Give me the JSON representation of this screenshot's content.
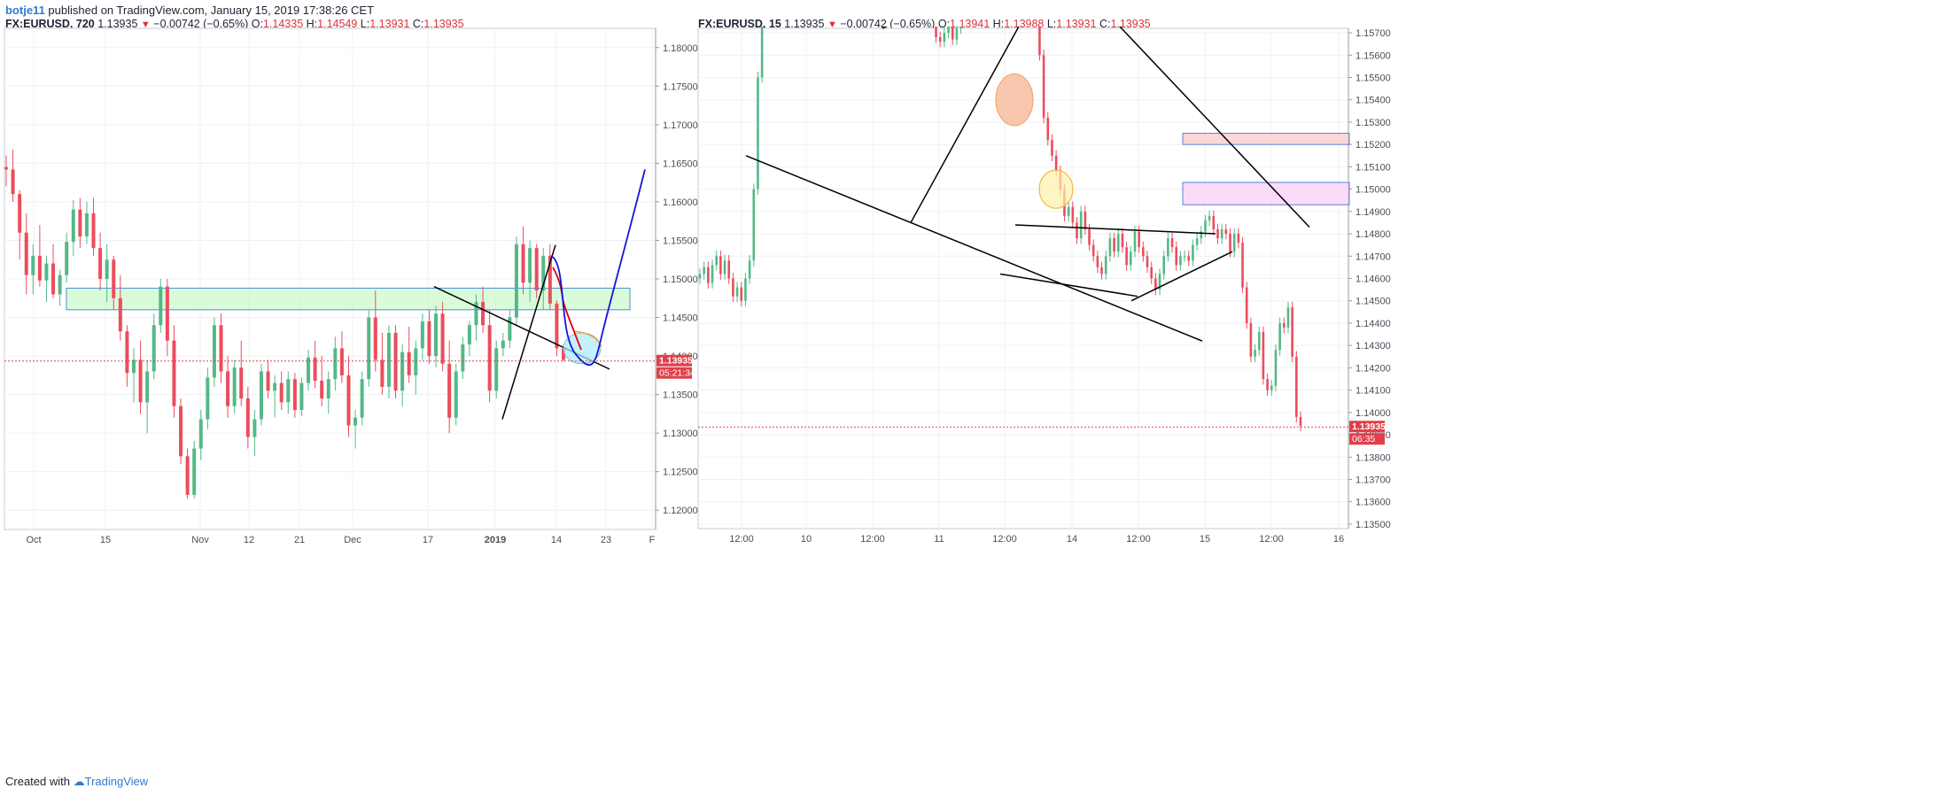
{
  "header": {
    "author": "botje11",
    "text": "published on TradingView.com, January 15, 2019 17:38:26 CET"
  },
  "footer": {
    "created": "Created with",
    "brand": "TradingView"
  },
  "chart_data": [
    {
      "type": "candlestick",
      "symbol": "FX:EURUSD",
      "interval": "720",
      "last": "1.13935",
      "change": "−0.00742 (−0.65%)",
      "open": "1.14335",
      "high": "1.14549",
      "low": "1.13931",
      "close": "1.13935",
      "price_label": "1.13935",
      "countdown": "05:21:34",
      "ylim": [
        1.1175,
        1.1825
      ],
      "y_ticks": [
        "1.18000",
        "1.17500",
        "1.17000",
        "1.16500",
        "1.16000",
        "1.15500",
        "1.15000",
        "1.14500",
        "1.14000",
        "1.13500",
        "1.13000",
        "1.12500",
        "1.12000"
      ],
      "x_ticks": [
        "Oct",
        "15",
        "Nov",
        "12",
        "21",
        "Dec",
        "17",
        "2019",
        "14",
        "23",
        "F"
      ],
      "candles": [
        [
          1.1645,
          1.166,
          1.162,
          1.1642
        ],
        [
          1.1642,
          1.1668,
          1.16,
          1.161
        ],
        [
          1.161,
          1.1615,
          1.1525,
          1.156
        ],
        [
          1.156,
          1.1585,
          1.148,
          1.1505
        ],
        [
          1.1505,
          1.1545,
          1.148,
          1.153
        ],
        [
          1.153,
          1.157,
          1.149,
          1.1498
        ],
        [
          1.1498,
          1.153,
          1.147,
          1.152
        ],
        [
          1.152,
          1.1545,
          1.1475,
          1.148
        ],
        [
          1.148,
          1.1512,
          1.1465,
          1.1505
        ],
        [
          1.1505,
          1.156,
          1.1495,
          1.1548
        ],
        [
          1.1548,
          1.1602,
          1.153,
          1.159
        ],
        [
          1.159,
          1.1605,
          1.154,
          1.1555
        ],
        [
          1.1555,
          1.16,
          1.1545,
          1.1585
        ],
        [
          1.1585,
          1.1605,
          1.153,
          1.154
        ],
        [
          1.154,
          1.156,
          1.1485,
          1.15
        ],
        [
          1.15,
          1.1545,
          1.147,
          1.1525
        ],
        [
          1.1525,
          1.153,
          1.146,
          1.1475
        ],
        [
          1.1475,
          1.1505,
          1.142,
          1.1432
        ],
        [
          1.1432,
          1.144,
          1.136,
          1.1378
        ],
        [
          1.1378,
          1.141,
          1.134,
          1.1395
        ],
        [
          1.1395,
          1.142,
          1.1325,
          1.134
        ],
        [
          1.134,
          1.1395,
          1.13,
          1.138
        ],
        [
          1.138,
          1.1455,
          1.137,
          1.144
        ],
        [
          1.144,
          1.15,
          1.143,
          1.149
        ],
        [
          1.149,
          1.15,
          1.14,
          1.142
        ],
        [
          1.142,
          1.144,
          1.132,
          1.1335
        ],
        [
          1.1335,
          1.1345,
          1.126,
          1.127
        ],
        [
          1.127,
          1.128,
          1.1215,
          1.122
        ],
        [
          1.122,
          1.129,
          1.1215,
          1.128
        ],
        [
          1.128,
          1.133,
          1.1265,
          1.1318
        ],
        [
          1.1318,
          1.1385,
          1.1305,
          1.1372
        ],
        [
          1.1372,
          1.145,
          1.136,
          1.144
        ],
        [
          1.144,
          1.1455,
          1.1365,
          1.138
        ],
        [
          1.138,
          1.14,
          1.132,
          1.1335
        ],
        [
          1.1335,
          1.1395,
          1.1325,
          1.1385
        ],
        [
          1.1385,
          1.142,
          1.1335,
          1.1345
        ],
        [
          1.1345,
          1.136,
          1.128,
          1.1295
        ],
        [
          1.1295,
          1.133,
          1.127,
          1.1318
        ],
        [
          1.1318,
          1.139,
          1.131,
          1.138
        ],
        [
          1.138,
          1.1395,
          1.1345,
          1.1355
        ],
        [
          1.1355,
          1.1375,
          1.132,
          1.1365
        ],
        [
          1.1365,
          1.138,
          1.133,
          1.134
        ],
        [
          1.134,
          1.138,
          1.1325,
          1.137
        ],
        [
          1.137,
          1.1378,
          1.132,
          1.133
        ],
        [
          1.133,
          1.1372,
          1.1322,
          1.1365
        ],
        [
          1.1365,
          1.1408,
          1.1355,
          1.1398
        ],
        [
          1.1398,
          1.142,
          1.1358,
          1.1368
        ],
        [
          1.1368,
          1.14,
          1.1335,
          1.1345
        ],
        [
          1.1345,
          1.138,
          1.1325,
          1.137
        ],
        [
          1.137,
          1.1425,
          1.1355,
          1.141
        ],
        [
          1.141,
          1.1432,
          1.1365,
          1.1375
        ],
        [
          1.1375,
          1.14,
          1.1295,
          1.131
        ],
        [
          1.131,
          1.133,
          1.128,
          1.132
        ],
        [
          1.132,
          1.138,
          1.131,
          1.137
        ],
        [
          1.137,
          1.146,
          1.136,
          1.145
        ],
        [
          1.145,
          1.1485,
          1.138,
          1.1395
        ],
        [
          1.1395,
          1.143,
          1.135,
          1.136
        ],
        [
          1.136,
          1.144,
          1.1345,
          1.143
        ],
        [
          1.143,
          1.144,
          1.1345,
          1.1355
        ],
        [
          1.1355,
          1.1415,
          1.1335,
          1.1405
        ],
        [
          1.1405,
          1.1438,
          1.1365,
          1.1375
        ],
        [
          1.1375,
          1.142,
          1.135,
          1.141
        ],
        [
          1.141,
          1.1455,
          1.1395,
          1.1445
        ],
        [
          1.1445,
          1.146,
          1.139,
          1.14
        ],
        [
          1.14,
          1.1465,
          1.1385,
          1.1455
        ],
        [
          1.1455,
          1.147,
          1.138,
          1.139
        ],
        [
          1.139,
          1.142,
          1.13,
          1.132
        ],
        [
          1.132,
          1.139,
          1.131,
          1.138
        ],
        [
          1.138,
          1.1425,
          1.137,
          1.1415
        ],
        [
          1.1415,
          1.1445,
          1.14,
          1.144
        ],
        [
          1.144,
          1.148,
          1.142,
          1.147
        ],
        [
          1.147,
          1.149,
          1.143,
          1.144
        ],
        [
          1.144,
          1.146,
          1.134,
          1.1355
        ],
        [
          1.1355,
          1.142,
          1.1345,
          1.141
        ],
        [
          1.141,
          1.143,
          1.14,
          1.142
        ],
        [
          1.142,
          1.146,
          1.141,
          1.145
        ],
        [
          1.145,
          1.1555,
          1.144,
          1.1545
        ],
        [
          1.1545,
          1.1568,
          1.148,
          1.1495
        ],
        [
          1.1495,
          1.155,
          1.147,
          1.154
        ],
        [
          1.154,
          1.1545,
          1.1475,
          1.1485
        ],
        [
          1.1485,
          1.154,
          1.146,
          1.153
        ],
        [
          1.153,
          1.1545,
          1.146,
          1.1468
        ],
        [
          1.1468,
          1.1472,
          1.14,
          1.141
        ],
        [
          1.141,
          1.1415,
          1.1393,
          1.1395
        ]
      ],
      "projection_red": [
        [
          1.153,
          1.1515
        ],
        [
          1.1495,
          1.147
        ],
        [
          1.143,
          1.141
        ]
      ],
      "projection_blue_end": 1.1642,
      "green_zone": [
        1.146,
        1.1488
      ],
      "current_price": 1.13935
    },
    {
      "type": "candlestick",
      "symbol": "FX:EURUSD",
      "interval": "15",
      "last": "1.13935",
      "change": "−0.00742 (−0.65%)",
      "open": "1.13941",
      "high": "1.13988",
      "low": "1.13931",
      "close": "1.13935",
      "price_label": "1.13935",
      "countdown": "06:35",
      "ylim": [
        1.1348,
        1.1572
      ],
      "y_ticks": [
        "1.15700",
        "1.15600",
        "1.15500",
        "1.15400",
        "1.15300",
        "1.15200",
        "1.15100",
        "1.15000",
        "1.14900",
        "1.14800",
        "1.14700",
        "1.14600",
        "1.14500",
        "1.14400",
        "1.14300",
        "1.14200",
        "1.14100",
        "1.14000",
        "1.13900",
        "1.13800",
        "1.13700",
        "1.13600",
        "1.13500"
      ],
      "x_ticks": [
        "12:00",
        "10",
        "12:00",
        "11",
        "12:00",
        "14",
        "12:00",
        "15",
        "12:00",
        "16"
      ],
      "path": [
        1.146,
        1.1462,
        1.1465,
        1.1458,
        1.1466,
        1.147,
        1.1462,
        1.1468,
        1.146,
        1.1452,
        1.1456,
        1.145,
        1.146,
        1.1468,
        1.15,
        1.155,
        1.1585,
        1.1615,
        1.1632,
        1.164,
        1.1636,
        1.1642,
        1.163,
        1.1645,
        1.165,
        1.166,
        1.1652,
        1.1662,
        1.1672,
        1.168,
        1.1675,
        1.1684,
        1.169,
        1.1682,
        1.1686,
        1.1696,
        1.17,
        1.1708,
        1.1702,
        1.1695,
        1.1688,
        1.1683,
        1.1672,
        1.1664,
        1.166,
        1.1648,
        1.1632,
        1.162,
        1.1608,
        1.1615,
        1.1622,
        1.1618,
        1.1612,
        1.162,
        1.161,
        1.1598,
        1.1588,
        1.1575,
        1.1568,
        1.1566,
        1.157,
        1.1574,
        1.1567,
        1.1572,
        1.1578,
        1.1588,
        1.1595,
        1.16,
        1.1608,
        1.1604,
        1.1612,
        1.1618,
        1.1624,
        1.1622,
        1.1628,
        1.162,
        1.1626,
        1.1623,
        1.163,
        1.1638,
        1.1632,
        1.1626,
        1.1592,
        1.156,
        1.1532,
        1.1522,
        1.1515,
        1.1508,
        1.15,
        1.1488,
        1.1492,
        1.1485,
        1.1478,
        1.149,
        1.1482,
        1.1475,
        1.147,
        1.1465,
        1.1462,
        1.147,
        1.1478,
        1.1472,
        1.148,
        1.1474,
        1.1466,
        1.1472,
        1.1481,
        1.1474,
        1.147,
        1.1465,
        1.146,
        1.1455,
        1.1462,
        1.147,
        1.1478,
        1.1474,
        1.1466,
        1.147,
        1.147,
        1.1468,
        1.1475,
        1.1478,
        1.1481,
        1.1486,
        1.1488,
        1.1482,
        1.1478,
        1.1482,
        1.148,
        1.1472,
        1.148,
        1.1476,
        1.1456,
        1.144,
        1.1425,
        1.1428,
        1.1436,
        1.1415,
        1.141,
        1.1412,
        1.1428,
        1.144,
        1.1438,
        1.1447,
        1.1425,
        1.1398,
        1.1394
      ],
      "rect_red": [
        1.152,
        1.1525
      ],
      "rect_pink": [
        1.1493,
        1.1503
      ],
      "current_price": 1.13935
    }
  ]
}
